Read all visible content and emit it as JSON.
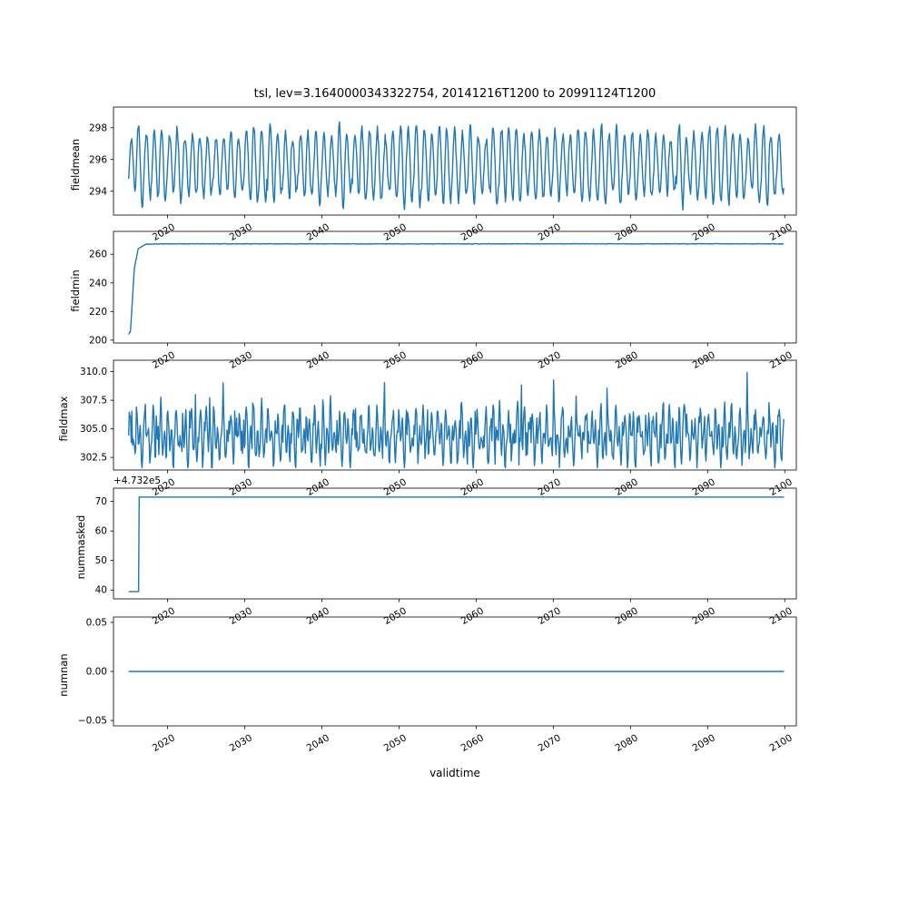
{
  "chart": {
    "title": "tsl, lev=3.1640000343322754, 20141216T1200 to 20991124T1200",
    "xlabel": "validtime",
    "xticks": [
      2020,
      2030,
      2040,
      2050,
      2060,
      2070,
      2080,
      2090,
      2100
    ],
    "xtick_labels": [
      "2020",
      "2030",
      "2040",
      "2050",
      "2060",
      "2070",
      "2080",
      "2090",
      "2100"
    ],
    "xlim": [
      2013.0,
      2101.5
    ],
    "line_color": "#1f77b4",
    "background": "#ffffff"
  },
  "chart_data": [
    {
      "type": "line",
      "ylabel": "fieldmean",
      "yticks": [
        294,
        296,
        298
      ],
      "ytick_labels": [
        "294",
        "296",
        "298"
      ],
      "ylim": [
        292.5,
        299.3
      ],
      "x_range": [
        2014.96,
        2099.9
      ],
      "series_summary": {
        "description": "dense annual seasonal oscillation over 2015-2100",
        "mean": 295.7,
        "typical_trough": 293.0,
        "typical_peak": 298.0,
        "extreme_peak": 298.7,
        "period_years": 1
      },
      "gen": {
        "kind": "seasonal",
        "mean": 295.65,
        "amp": 2.1,
        "amp_jitter": 0.5,
        "noise": 0.28,
        "samples_per_year": 12,
        "seed": 7
      }
    },
    {
      "type": "line",
      "ylabel": "fieldmin",
      "yticks": [
        200,
        220,
        240,
        260
      ],
      "ytick_labels": [
        "200",
        "220",
        "240",
        "260"
      ],
      "ylim": [
        198.0,
        276.0
      ],
      "x_range": [
        2014.96,
        2099.9
      ],
      "series_summary": {
        "description": "starts near 204, rises steeply within ~2 years to a plateau of ~267 and stays flat to 2100",
        "start_value": 204,
        "plateau_value": 267.3
      },
      "keypoints": [
        [
          2014.96,
          204.0
        ],
        [
          2015.2,
          206.0
        ],
        [
          2015.7,
          250.0
        ],
        [
          2016.2,
          264.0
        ],
        [
          2017.2,
          267.0
        ],
        [
          2019.0,
          267.3
        ],
        [
          2099.9,
          267.3
        ]
      ],
      "gen": {
        "kind": "keypoints_noise",
        "noise": 0.18,
        "samples_per_year": 12,
        "seed": 11
      }
    },
    {
      "type": "line",
      "ylabel": "fieldmax",
      "yticks": [
        302.5,
        305.0,
        307.5,
        310.0
      ],
      "ytick_labels": [
        "302.5",
        "305.0",
        "307.5",
        "310.0"
      ],
      "ylim": [
        301.4,
        311.0
      ],
      "x_range": [
        2014.96,
        2099.9
      ],
      "series_summary": {
        "description": "spiky multi-peaked annual oscillation",
        "typical_low": 302.0,
        "typical_high": 308.0,
        "extreme_high": 310.4,
        "period_years": 1
      },
      "gen": {
        "kind": "spiky",
        "base": 304.4,
        "amp1": 1.2,
        "amp2": 1.5,
        "noise": 0.55,
        "clamp_min": 301.6,
        "clamp_max": 310.4,
        "samples_per_year": 12,
        "seed": 23
      }
    },
    {
      "type": "line",
      "ylabel": "nummasked",
      "offset_text": "+4.732e5",
      "yticks": [
        40,
        50,
        60,
        70
      ],
      "ytick_labels": [
        "40",
        "50",
        "60",
        "70"
      ],
      "ylim": [
        37.0,
        74.5
      ],
      "x_range": [
        2014.96,
        2099.9
      ],
      "series_summary": {
        "description": "constant ~39.5 (i.e. 473239.5 with +4.732e5 offset) until ~2016, then steps up to ~71.5 (473271.5) and stays constant to 2100",
        "initial_displayed": 39.5,
        "final_displayed": 71.5,
        "step_year": 2016.3
      },
      "keypoints": [
        [
          2014.96,
          39.5
        ],
        [
          2016.25,
          39.5
        ],
        [
          2016.33,
          71.5
        ],
        [
          2099.9,
          71.5
        ]
      ],
      "gen": {
        "kind": "keypoints",
        "seed": 3
      }
    },
    {
      "type": "line",
      "ylabel": "numnan",
      "yticks": [
        -0.05,
        0.0,
        0.05
      ],
      "ytick_labels": [
        "−0.05",
        "0.00",
        "0.05"
      ],
      "ylim": [
        -0.0555,
        0.0555
      ],
      "x_range": [
        2014.96,
        2099.9
      ],
      "series_summary": {
        "description": "constant zero across full time range",
        "value": 0.0
      },
      "keypoints": [
        [
          2014.96,
          0.0
        ],
        [
          2099.9,
          0.0
        ]
      ],
      "gen": {
        "kind": "keypoints",
        "seed": 1
      }
    }
  ]
}
